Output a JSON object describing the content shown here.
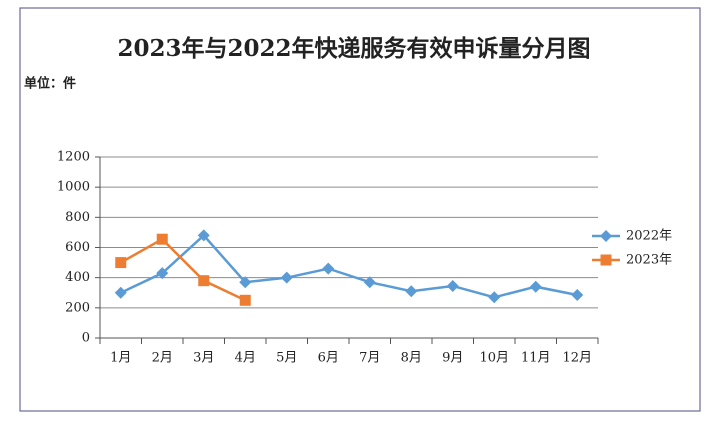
{
  "chart_data": {
    "type": "line",
    "title": "2023年与2022年快递服务有效申诉量分月图",
    "subtitle": "单位：件",
    "categories": [
      "1月",
      "2月",
      "3月",
      "4月",
      "5月",
      "6月",
      "7月",
      "8月",
      "9月",
      "10月",
      "11月",
      "12月"
    ],
    "series": [
      {
        "name": "2022年",
        "color": "#5b9bd5",
        "marker": "diamond",
        "values": [
          300,
          430,
          680,
          370,
          400,
          460,
          370,
          310,
          345,
          270,
          340,
          285
        ]
      },
      {
        "name": "2023年",
        "color": "#ed7d31",
        "marker": "square",
        "values": [
          500,
          655,
          380,
          250,
          null,
          null,
          null,
          null,
          null,
          null,
          null,
          null
        ]
      }
    ],
    "ylim": [
      0,
      1200
    ],
    "yticks": [
      0,
      200,
      400,
      600,
      800,
      1000,
      1200
    ],
    "grid": true,
    "legend": "right"
  }
}
